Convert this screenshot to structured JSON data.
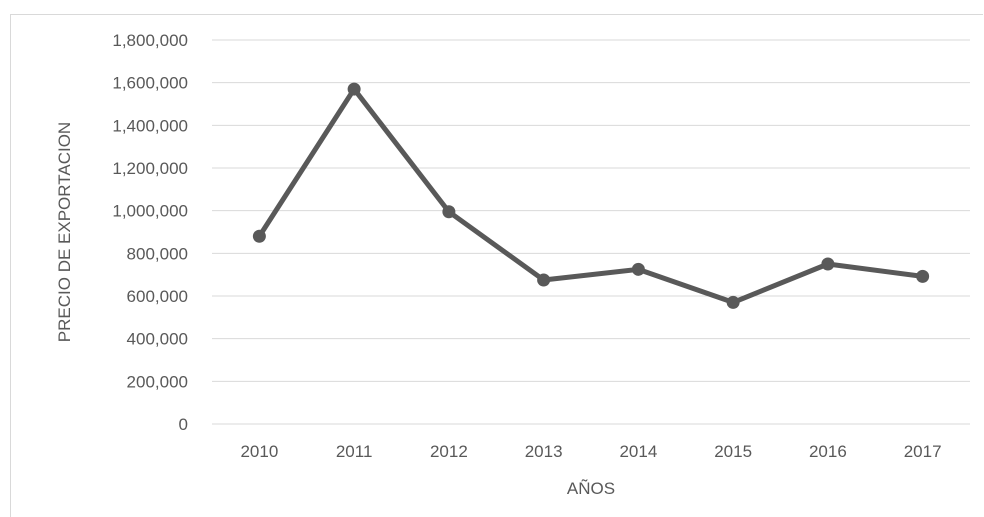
{
  "chart_data": {
    "type": "line",
    "xlabel": "AÑOS",
    "ylabel": "PRECIO DE EXPORTACION",
    "categories": [
      "2010",
      "2011",
      "2012",
      "2013",
      "2014",
      "2015",
      "2016",
      "2017"
    ],
    "series": [
      {
        "values": [
          880000,
          1570000,
          995000,
          675000,
          725000,
          570000,
          750000,
          692000
        ],
        "color": "#595959"
      }
    ],
    "ylim": [
      0,
      1800000
    ],
    "yticks": [
      0,
      200000,
      400000,
      600000,
      800000,
      1000000,
      1200000,
      1400000,
      1600000,
      1800000
    ],
    "ytick_labels": [
      "0",
      "200,000",
      "400,000",
      "600,000",
      "800,000",
      "1,000,000",
      "1,200,000",
      "1,400,000",
      "1,600,000",
      "1,800,000"
    ],
    "grid": true,
    "gridline_color": "#d9d9d9",
    "legend": "none"
  }
}
